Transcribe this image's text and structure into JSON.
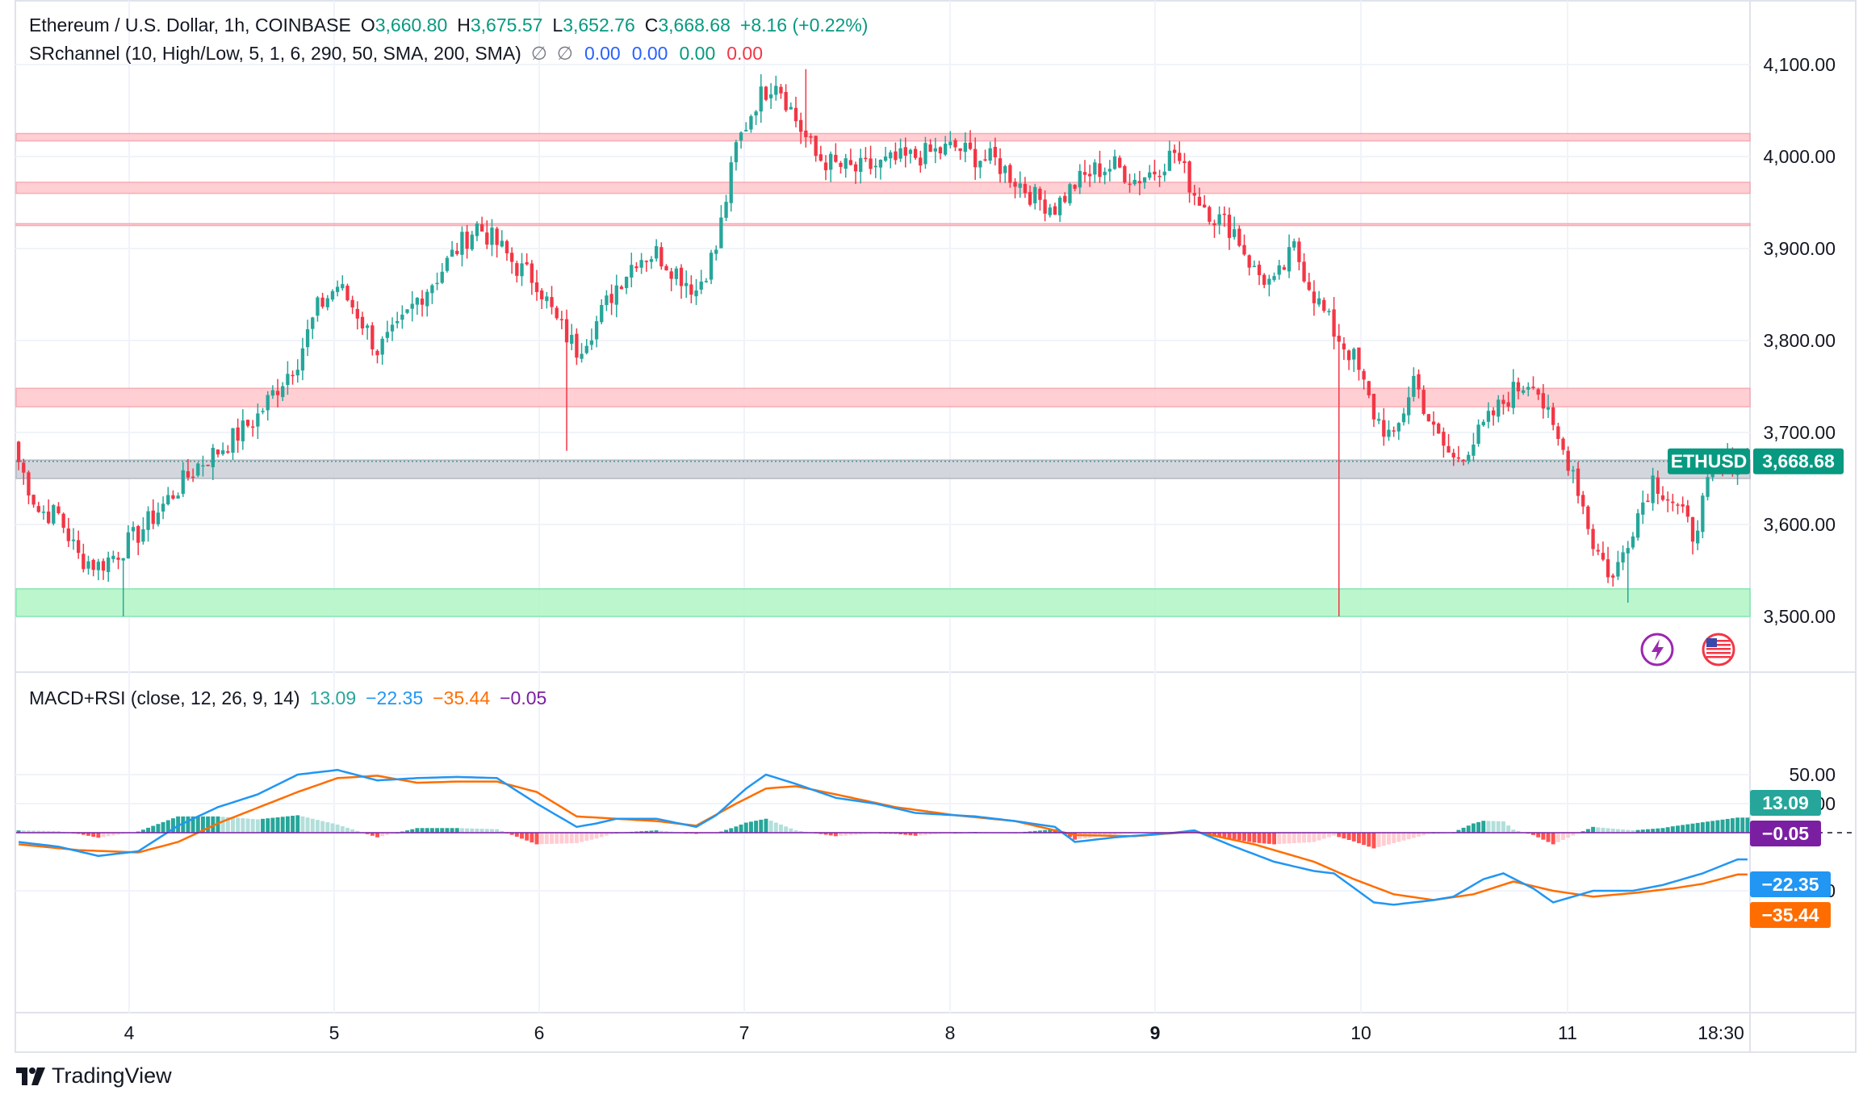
{
  "header": {
    "symbol_line": "Ethereum / U.S. Dollar, 1h, COINBASE",
    "open_label": "O",
    "open": "3,660.80",
    "high_label": "H",
    "high": "3,675.57",
    "low_label": "L",
    "low": "3,652.76",
    "close_label": "C",
    "close": "3,668.68",
    "change": "+8.16 (+0.22%)",
    "srchannel_label": "SRchannel (10, High/Low, 5, 1, 6, 290, 50, SMA, 200, SMA)",
    "sr_glyph_1": "∅",
    "sr_glyph_2": "∅",
    "sr_v1": "0.00",
    "sr_v2": "0.00",
    "sr_v3": "0.00",
    "sr_v4": "0.00",
    "macd_label": "MACD+RSI (close, 12, 26, 9, 14)",
    "macd_v1": "13.09",
    "macd_v2": "−22.35",
    "macd_v3": "−35.44",
    "macd_v4": "−0.05"
  },
  "price_badges": {
    "symbol": "ETHUSD",
    "last": "3,668.68"
  },
  "macd_badges": {
    "hist": "13.09",
    "zero": "−0.05",
    "macd": "−22.35",
    "signal": "−35.44"
  },
  "branding": {
    "name": "TradingView"
  },
  "colors": {
    "up": "#26a69a",
    "down": "#f23645",
    "macd": "#2196f3",
    "signal": "#ff6d00",
    "resistance_zone": "#ffcdd2",
    "support_zone": "#b9f6ca",
    "current_zone": "#d1d4dc"
  },
  "chart_data": [
    {
      "type": "candlestick",
      "title": "Ethereum / U.S. Dollar, 1h, COINBASE",
      "ylim": [
        3430,
        4140
      ],
      "y_ticks": [
        "4,100.00",
        "4,000.00",
        "3,900.00",
        "3,800.00",
        "3,700.00",
        "3,600.00",
        "3,500.00"
      ],
      "x_ticks": [
        "4",
        "5",
        "6",
        "7",
        "8",
        "9",
        "10",
        "11",
        "18:30"
      ],
      "last_price": 3668.68,
      "zones": [
        {
          "kind": "resistance",
          "low": 4017,
          "high": 4025
        },
        {
          "kind": "resistance",
          "low": 3960,
          "high": 3972
        },
        {
          "kind": "resistance",
          "low": 3925,
          "high": 3927
        },
        {
          "kind": "resistance",
          "low": 3728,
          "high": 3748
        },
        {
          "kind": "current",
          "low": 3650,
          "high": 3670
        },
        {
          "kind": "support",
          "low": 3500,
          "high": 3530
        }
      ],
      "anchors": [
        [
          0,
          3668
        ],
        [
          4,
          3615
        ],
        [
          8,
          3610
        ],
        [
          12,
          3565
        ],
        [
          16,
          3555
        ],
        [
          20,
          3570
        ],
        [
          24,
          3590
        ],
        [
          28,
          3615
        ],
        [
          32,
          3640
        ],
        [
          36,
          3665
        ],
        [
          40,
          3680
        ],
        [
          44,
          3698
        ],
        [
          48,
          3718
        ],
        [
          52,
          3750
        ],
        [
          56,
          3780
        ],
        [
          60,
          3835
        ],
        [
          64,
          3860
        ],
        [
          68,
          3830
        ],
        [
          72,
          3790
        ],
        [
          76,
          3810
        ],
        [
          80,
          3845
        ],
        [
          84,
          3870
        ],
        [
          88,
          3900
        ],
        [
          92,
          3925
        ],
        [
          96,
          3905
        ],
        [
          100,
          3880
        ],
        [
          104,
          3865
        ],
        [
          108,
          3820
        ],
        [
          112,
          3790
        ],
        [
          116,
          3820
        ],
        [
          120,
          3860
        ],
        [
          124,
          3890
        ],
        [
          128,
          3895
        ],
        [
          132,
          3875
        ],
        [
          136,
          3855
        ],
        [
          140,
          3900
        ],
        [
          144,
          4010
        ],
        [
          148,
          4060
        ],
        [
          152,
          4085
        ],
        [
          156,
          4040
        ],
        [
          160,
          4000
        ],
        [
          164,
          3990
        ],
        [
          168,
          3985
        ],
        [
          172,
          3990
        ],
        [
          176,
          3995
        ],
        [
          180,
          4000
        ],
        [
          184,
          4005
        ],
        [
          188,
          4010
        ],
        [
          192,
          4000
        ],
        [
          196,
          3995
        ],
        [
          200,
          3975
        ],
        [
          204,
          3955
        ],
        [
          208,
          3945
        ],
        [
          212,
          3970
        ],
        [
          216,
          3985
        ],
        [
          220,
          3990
        ],
        [
          224,
          3975
        ],
        [
          228,
          3985
        ],
        [
          232,
          4005
        ],
        [
          236,
          3960
        ],
        [
          240,
          3935
        ],
        [
          244,
          3920
        ],
        [
          248,
          3875
        ],
        [
          252,
          3860
        ],
        [
          256,
          3900
        ],
        [
          260,
          3850
        ],
        [
          264,
          3810
        ],
        [
          268,
          3780
        ],
        [
          272,
          3720
        ],
        [
          276,
          3690
        ],
        [
          280,
          3760
        ],
        [
          284,
          3700
        ],
        [
          288,
          3670
        ],
        [
          292,
          3690
        ],
        [
          296,
          3720
        ],
        [
          300,
          3745
        ],
        [
          304,
          3760
        ],
        [
          308,
          3700
        ],
        [
          312,
          3660
        ],
        [
          316,
          3580
        ],
        [
          320,
          3540
        ],
        [
          324,
          3600
        ],
        [
          328,
          3650
        ],
        [
          332,
          3625
        ],
        [
          336,
          3590
        ],
        [
          340,
          3655
        ],
        [
          344,
          3668
        ],
        [
          347,
          3668.68
        ]
      ]
    },
    {
      "type": "macd",
      "title": "MACD+RSI (close, 12, 26, 9, 14)",
      "ylim": [
        -80,
        70
      ],
      "y_ticks": [
        "50.00",
        "25.00",
        "-50.00"
      ],
      "series": [
        {
          "name": "MACD",
          "anchors": [
            [
              0,
              -8
            ],
            [
              8,
              -12
            ],
            [
              16,
              -20
            ],
            [
              24,
              -16
            ],
            [
              32,
              6
            ],
            [
              40,
              22
            ],
            [
              48,
              33
            ],
            [
              56,
              50
            ],
            [
              64,
              54
            ],
            [
              72,
              45
            ],
            [
              80,
              47
            ],
            [
              88,
              48
            ],
            [
              96,
              47
            ],
            [
              104,
              25
            ],
            [
              112,
              5
            ],
            [
              116,
              8
            ],
            [
              120,
              12
            ],
            [
              128,
              12
            ],
            [
              136,
              5
            ],
            [
              140,
              15
            ],
            [
              146,
              38
            ],
            [
              150,
              50
            ],
            [
              156,
              42
            ],
            [
              164,
              30
            ],
            [
              172,
              25
            ],
            [
              180,
              17
            ],
            [
              192,
              14
            ],
            [
              200,
              10
            ],
            [
              208,
              5
            ],
            [
              212,
              -8
            ],
            [
              220,
              -4
            ],
            [
              232,
              0
            ],
            [
              236,
              2
            ],
            [
              244,
              -12
            ],
            [
              252,
              -25
            ],
            [
              260,
              -33
            ],
            [
              264,
              -35
            ],
            [
              272,
              -60
            ],
            [
              276,
              -62
            ],
            [
              284,
              -58
            ],
            [
              288,
              -55
            ],
            [
              294,
              -40
            ],
            [
              298,
              -35
            ],
            [
              304,
              -48
            ],
            [
              308,
              -60
            ],
            [
              316,
              -50
            ],
            [
              324,
              -50
            ],
            [
              330,
              -45
            ],
            [
              338,
              -35
            ],
            [
              345,
              -23
            ]
          ]
        },
        {
          "name": "Signal",
          "anchors": [
            [
              0,
              -10
            ],
            [
              12,
              -15
            ],
            [
              24,
              -17
            ],
            [
              32,
              -8
            ],
            [
              40,
              8
            ],
            [
              56,
              35
            ],
            [
              64,
              47
            ],
            [
              72,
              49
            ],
            [
              80,
              43
            ],
            [
              88,
              44
            ],
            [
              96,
              44
            ],
            [
              104,
              35
            ],
            [
              112,
              14
            ],
            [
              120,
              12
            ],
            [
              128,
              10
            ],
            [
              136,
              6
            ],
            [
              144,
              25
            ],
            [
              150,
              38
            ],
            [
              156,
              40
            ],
            [
              164,
              33
            ],
            [
              176,
              22
            ],
            [
              188,
              15
            ],
            [
              200,
              10
            ],
            [
              212,
              -2
            ],
            [
              224,
              -3
            ],
            [
              236,
              1
            ],
            [
              248,
              -10
            ],
            [
              260,
              -25
            ],
            [
              268,
              -40
            ],
            [
              276,
              -53
            ],
            [
              284,
              -58
            ],
            [
              292,
              -53
            ],
            [
              300,
              -42
            ],
            [
              308,
              -50
            ],
            [
              316,
              -55
            ],
            [
              324,
              -52
            ],
            [
              332,
              -48
            ],
            [
              338,
              -44
            ],
            [
              345,
              -36
            ]
          ]
        }
      ],
      "histogram_note": "MACD minus Signal"
    }
  ]
}
